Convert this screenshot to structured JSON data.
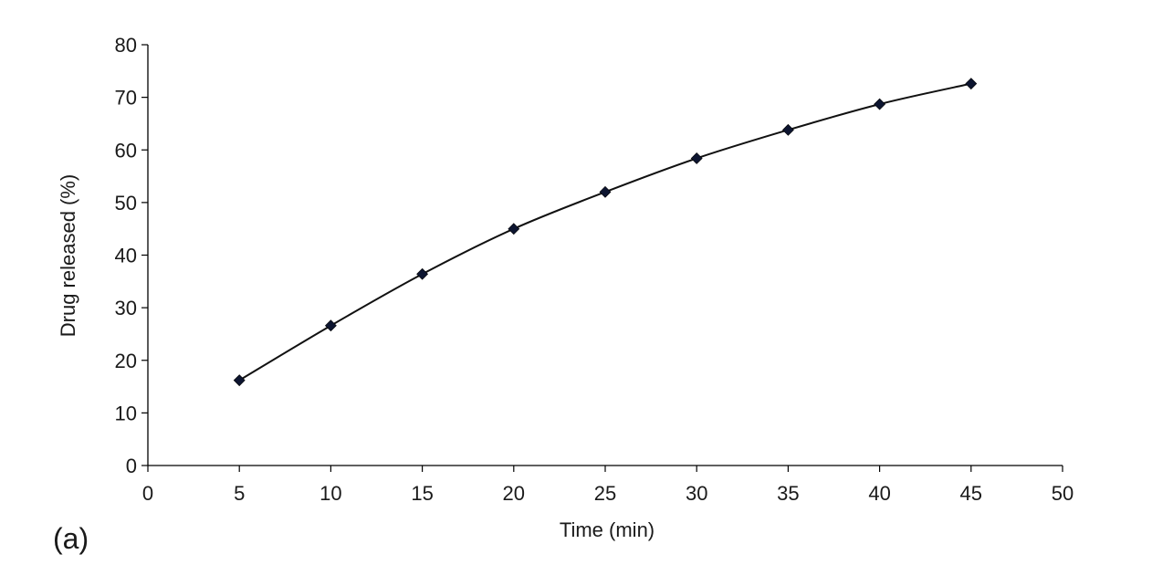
{
  "panel_label": "(a)",
  "chart_data": {
    "type": "line",
    "xlabel": "Time (min)",
    "ylabel": "Drug released (%)",
    "xlim": [
      0,
      50
    ],
    "ylim": [
      0,
      80
    ],
    "x_ticks": [
      0,
      5,
      10,
      15,
      20,
      25,
      30,
      35,
      40,
      45,
      50
    ],
    "y_ticks": [
      0,
      10,
      20,
      30,
      40,
      50,
      60,
      70,
      80
    ],
    "grid": false,
    "legend": "none",
    "marker": "diamond",
    "line_color": "#111111",
    "marker_color": "#0d1530",
    "series": [
      {
        "x": [
          5,
          10,
          15,
          20,
          25,
          30,
          35,
          40,
          45
        ],
        "values": [
          16.2,
          26.6,
          36.4,
          45.0,
          52.0,
          58.4,
          63.8,
          68.7,
          72.6
        ]
      }
    ]
  }
}
